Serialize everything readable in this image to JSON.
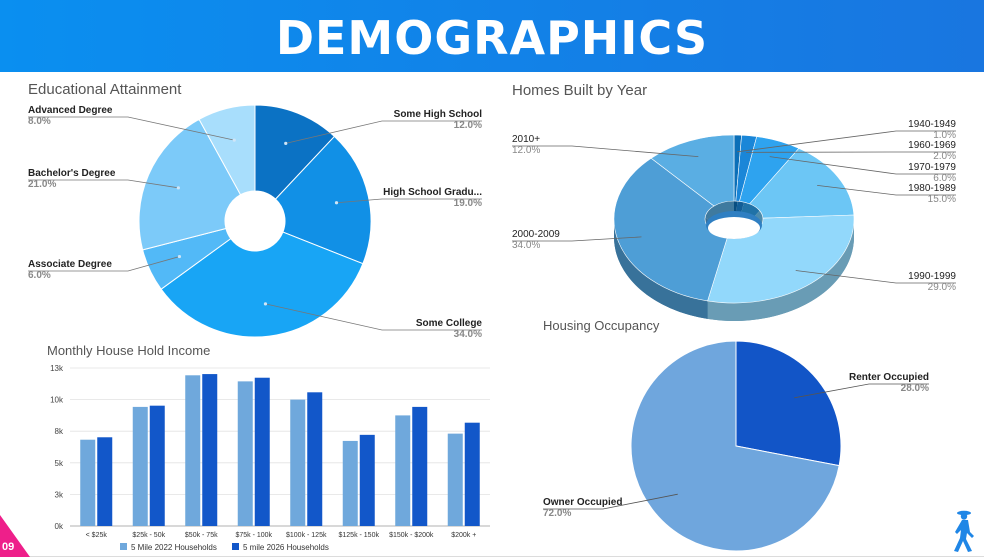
{
  "header": {
    "title": "DEMOGRAPHICS"
  },
  "page_number": "09",
  "icons": {
    "logo": "walking-person-icon"
  },
  "colors": {
    "header": "#1a82e8",
    "accent": "#ee1f8a"
  },
  "chart_data": [
    {
      "type": "pie",
      "title": "Educational Attainment",
      "style": "donut",
      "slices": [
        {
          "label": "Some High School",
          "value": "12.0%",
          "pct": 12.0,
          "color": "#0b72c4"
        },
        {
          "label": "High School Gradu...",
          "value": "19.0%",
          "pct": 19.0,
          "color": "#1190e6"
        },
        {
          "label": "Some College",
          "value": "34.0%",
          "pct": 34.0,
          "color": "#18a5f5"
        },
        {
          "label": "Associate Degree",
          "value": "6.0%",
          "pct": 6.0,
          "color": "#52b9f7"
        },
        {
          "label": "Bachelor's Degree",
          "value": "21.0%",
          "pct": 21.0,
          "color": "#7ccaf9"
        },
        {
          "label": "Advanced Degree",
          "value": "8.0%",
          "pct": 8.0,
          "color": "#a8defc"
        }
      ]
    },
    {
      "type": "pie",
      "title": "Homes Built by Year",
      "style": "3d-donut",
      "slices": [
        {
          "label": "1940-1949",
          "value": "1.0%",
          "pct": 1.0,
          "color": "#0b6fb8"
        },
        {
          "label": "1960-1969",
          "value": "2.0%",
          "pct": 2.0,
          "color": "#1a86d8"
        },
        {
          "label": "1970-1979",
          "value": "6.0%",
          "pct": 6.0,
          "color": "#2ea3ef"
        },
        {
          "label": "1980-1989",
          "value": "15.0%",
          "pct": 15.0,
          "color": "#6cc6f5"
        },
        {
          "label": "1990-1999",
          "value": "29.0%",
          "pct": 29.0,
          "color": "#92d8fb"
        },
        {
          "label": "2000-2009",
          "value": "34.0%",
          "pct": 34.0,
          "color": "#4e9ed6"
        },
        {
          "label": "2010+",
          "value": "12.0%",
          "pct": 12.0,
          "color": "#5aaee3"
        }
      ]
    },
    {
      "type": "bar",
      "title": "Monthly House Hold Income",
      "categories": [
        "< $25k",
        "$25k - 50k",
        "$50k - 75k",
        "$75k - 100k",
        "$100k - 125k",
        "$125k - 150k",
        "$150k - $200k",
        "$200k +"
      ],
      "series": [
        {
          "name": "5 Mile 2022 Households",
          "color": "#6fa8dc",
          "values": [
            7100,
            9800,
            12400,
            11900,
            10400,
            7000,
            9100,
            7600
          ]
        },
        {
          "name": "5 mile 2026 Households",
          "color": "#1257c9",
          "values": [
            7300,
            9900,
            12500,
            12200,
            11000,
            7500,
            9800,
            8500
          ]
        }
      ],
      "ylim": [
        0,
        13000
      ],
      "yticks": [
        0,
        2600,
        5200,
        7800,
        10400,
        13000
      ],
      "ytick_labels": [
        "0k",
        "3k",
        "5k",
        "8k",
        "10k",
        "13k"
      ],
      "grid": true,
      "legend": "bottom"
    },
    {
      "type": "pie",
      "title": "Housing Occupancy",
      "slices": [
        {
          "label": "Renter Occupied",
          "value": "28.0%",
          "pct": 28.0,
          "color": "#1255c7"
        },
        {
          "label": "Owner Occupied",
          "value": "72.0%",
          "pct": 72.0,
          "color": "#6fa6dd"
        }
      ]
    }
  ]
}
